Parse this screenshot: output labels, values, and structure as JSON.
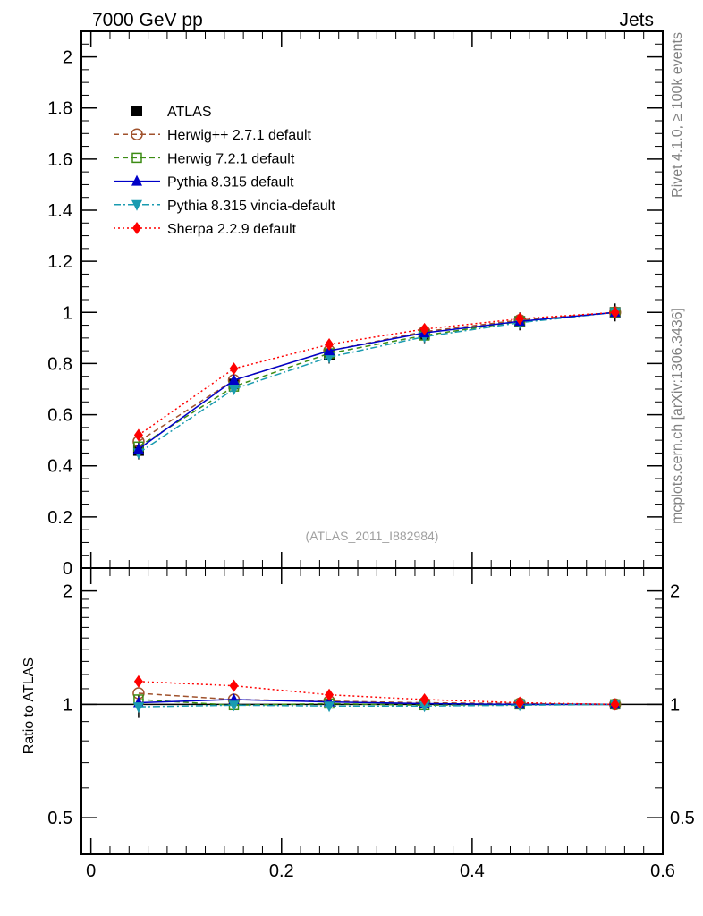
{
  "header": {
    "left": "7000 GeV pp",
    "right": "Jets"
  },
  "side_text": {
    "top": "Rivet 4.1.0, ≥ 100k events",
    "bottom": "mcplots.cern.ch [arXiv:1306.3436]"
  },
  "colors": {
    "atlas": "#000000",
    "herwigpp": "#a0522d",
    "herwig7": "#3c8c14",
    "pythia": "#0000c8",
    "vincia": "#1a9bb0",
    "sherpa": "#ff0000"
  },
  "chart_data": [
    {
      "type": "line",
      "panel": "main",
      "annotation": "(ATLAS_2011_I882984)",
      "xlim": [
        -0.01,
        0.6
      ],
      "ylim": [
        0,
        2.1
      ],
      "x_ticks": [
        "0",
        "0.2",
        "0.4",
        "0.6"
      ],
      "y_ticks": [
        "0",
        "0.2",
        "0.4",
        "0.6",
        "0.8",
        "1",
        "1.2",
        "1.4",
        "1.6",
        "1.8",
        "2"
      ],
      "x": [
        0.05,
        0.15,
        0.25,
        0.35,
        0.45,
        0.55
      ],
      "legend_position": "top-left",
      "series": [
        {
          "name": "ATLAS",
          "key": "atlas",
          "marker": "square",
          "style": "none",
          "values": [
            0.46,
            0.72,
            0.835,
            0.915,
            0.965,
            1.0
          ]
        },
        {
          "name": "Herwig++ 2.7.1 default",
          "key": "herwigpp",
          "marker": "open-circle",
          "style": "dashed",
          "values": [
            0.495,
            0.735,
            0.85,
            0.925,
            0.97,
            1.0
          ]
        },
        {
          "name": "Herwig 7.2.1 default",
          "key": "herwig7",
          "marker": "open-square",
          "style": "dashed",
          "values": [
            0.475,
            0.71,
            0.84,
            0.91,
            0.965,
            1.0
          ]
        },
        {
          "name": "Pythia 8.315 default",
          "key": "pythia",
          "marker": "triangle-up",
          "style": "solid",
          "values": [
            0.465,
            0.735,
            0.85,
            0.92,
            0.965,
            1.0
          ]
        },
        {
          "name": "Pythia 8.315 vincia-default",
          "key": "vincia",
          "marker": "triangle-down",
          "style": "dashdot",
          "values": [
            0.45,
            0.7,
            0.825,
            0.905,
            0.96,
            1.0
          ]
        },
        {
          "name": "Sherpa 2.2.9 default",
          "key": "sherpa",
          "marker": "diamond",
          "style": "dotted",
          "values": [
            0.52,
            0.78,
            0.875,
            0.935,
            0.975,
            1.0
          ]
        }
      ]
    },
    {
      "type": "line",
      "panel": "ratio",
      "ylabel": "Ratio to ATLAS",
      "ylim": [
        0.4,
        2.3
      ],
      "y_ticks_left": [
        "0.5",
        "1",
        "2"
      ],
      "y_ticks_right": [
        "0.5",
        "1",
        "2"
      ],
      "x": [
        0.05,
        0.15,
        0.25,
        0.35,
        0.45,
        0.55
      ],
      "series": [
        {
          "name": "Herwig++ 2.7.1 default",
          "key": "herwigpp",
          "values": [
            1.07,
            1.03,
            1.02,
            1.01,
            1.005,
            1.0
          ]
        },
        {
          "name": "Herwig 7.2.1 default",
          "key": "herwig7",
          "values": [
            1.03,
            0.995,
            1.005,
            0.995,
            1.0,
            1.0
          ]
        },
        {
          "name": "Pythia 8.315 default",
          "key": "pythia",
          "values": [
            1.01,
            1.03,
            1.015,
            1.005,
            1.0,
            1.0
          ]
        },
        {
          "name": "Pythia 8.315 vincia-default",
          "key": "vincia",
          "values": [
            0.985,
            0.995,
            0.99,
            0.99,
            0.995,
            1.0
          ]
        },
        {
          "name": "Sherpa 2.2.9 default",
          "key": "sherpa",
          "values": [
            1.15,
            1.12,
            1.06,
            1.03,
            1.01,
            1.0
          ]
        }
      ]
    }
  ]
}
